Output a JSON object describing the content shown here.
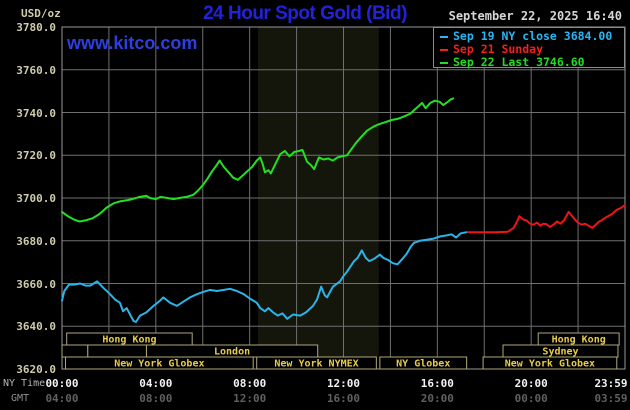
{
  "header": {
    "units_label": "USD/oz",
    "title": "24 Hour Spot Gold (Bid)",
    "datetime": "September 22, 2025 16:40",
    "watermark": "www.kitco.com"
  },
  "legend": {
    "items": [
      {
        "label": "Sep 19 NY close 3684.00",
        "color": "#29b5f2"
      },
      {
        "label": "Sep 21 Sunday",
        "color": "#f02020"
      },
      {
        "label": "Sep 22 Last 3746.60",
        "color": "#21dd21"
      }
    ]
  },
  "axes": {
    "y": {
      "min": 3620,
      "max": 3780,
      "step": 20,
      "labels": [
        "3780.0",
        "3760.0",
        "3740.0",
        "3720.0",
        "3700.0",
        "3680.0",
        "3660.0",
        "3640.0",
        "3620.0"
      ]
    },
    "x": {
      "ny_label": "NY Time",
      "gmt_label": "GMT",
      "ticks": [
        {
          "h": 0,
          "ny": "00:00",
          "gmt": "04:00"
        },
        {
          "h": 4,
          "ny": "04:00",
          "gmt": "08:00"
        },
        {
          "h": 8,
          "ny": "08:00",
          "gmt": "12:00"
        },
        {
          "h": 12,
          "ny": "12:00",
          "gmt": "16:00"
        },
        {
          "h": 16,
          "ny": "16:00",
          "gmt": "20:00"
        },
        {
          "h": 20,
          "ny": "20:00",
          "gmt": "00:00"
        },
        {
          "h": 23.983,
          "ny": "23:59",
          "gmt": "03:59"
        }
      ],
      "gridline_step_hours": 2
    }
  },
  "chart_data": {
    "type": "line",
    "title": "24 Hour Spot Gold (Bid)",
    "x_unit": "hours_ny_time",
    "xlim": [
      0,
      24
    ],
    "ylim": [
      3620,
      3780
    ],
    "grid": true,
    "nymex_band_hours": [
      8.35,
      13.5
    ],
    "band_color": "#15160b",
    "sessions": [
      {
        "row": 0,
        "start": 0.2,
        "end": 5.55,
        "label": "Hong Kong"
      },
      {
        "row": 0,
        "start": 20.3,
        "end": 23.75,
        "label": "Hong Kong"
      },
      {
        "row": 1,
        "start": 0.0,
        "end": 1.1,
        "label": ""
      },
      {
        "row": 1,
        "start": 1.1,
        "end": 3.6,
        "label": ""
      },
      {
        "row": 1,
        "start": 3.6,
        "end": 10.9,
        "label": "London"
      },
      {
        "row": 1,
        "start": 18.8,
        "end": 23.7,
        "label": "Sydney"
      },
      {
        "row": 2,
        "start": 0.15,
        "end": 8.15,
        "label": "New York Globex"
      },
      {
        "row": 2,
        "start": 8.3,
        "end": 13.4,
        "label": "New York NYMEX"
      },
      {
        "row": 2,
        "start": 13.55,
        "end": 17.25,
        "label": "NY Globex"
      },
      {
        "row": 2,
        "start": 17.95,
        "end": 23.65,
        "label": "New York Globex"
      }
    ],
    "series": [
      {
        "name": "Sep 22 (today)",
        "color": "#22e022",
        "points": [
          [
            0,
            3693.5
          ],
          [
            0.25,
            3691.5
          ],
          [
            0.5,
            3690
          ],
          [
            0.75,
            3689
          ],
          [
            1,
            3689.5
          ],
          [
            1.3,
            3690.5
          ],
          [
            1.6,
            3692.5
          ],
          [
            1.9,
            3695.5
          ],
          [
            2.2,
            3697.5
          ],
          [
            2.5,
            3698.5
          ],
          [
            2.8,
            3699
          ],
          [
            3,
            3699.5
          ],
          [
            3.3,
            3700.5
          ],
          [
            3.6,
            3701
          ],
          [
            3.75,
            3700
          ],
          [
            4,
            3699.5
          ],
          [
            4.2,
            3700.5
          ],
          [
            4.5,
            3700
          ],
          [
            4.75,
            3699.5
          ],
          [
            5,
            3700
          ],
          [
            5.3,
            3700.5
          ],
          [
            5.6,
            3701.5
          ],
          [
            5.8,
            3703.5
          ],
          [
            6,
            3706
          ],
          [
            6.2,
            3709
          ],
          [
            6.4,
            3712.5
          ],
          [
            6.6,
            3715.5
          ],
          [
            6.72,
            3717.5
          ],
          [
            6.9,
            3714.5
          ],
          [
            7.1,
            3712
          ],
          [
            7.3,
            3709.5
          ],
          [
            7.5,
            3708.5
          ],
          [
            7.7,
            3710.5
          ],
          [
            7.9,
            3712.5
          ],
          [
            8.1,
            3714.5
          ],
          [
            8.3,
            3717.5
          ],
          [
            8.45,
            3719
          ],
          [
            8.55,
            3716
          ],
          [
            8.65,
            3712
          ],
          [
            8.8,
            3713
          ],
          [
            8.9,
            3711.5
          ],
          [
            9.1,
            3716
          ],
          [
            9.3,
            3720.5
          ],
          [
            9.5,
            3722
          ],
          [
            9.7,
            3719.5
          ],
          [
            9.9,
            3721.5
          ],
          [
            10.1,
            3722
          ],
          [
            10.25,
            3722.5
          ],
          [
            10.45,
            3717
          ],
          [
            10.6,
            3715.5
          ],
          [
            10.75,
            3713.5
          ],
          [
            10.95,
            3719
          ],
          [
            11.15,
            3718
          ],
          [
            11.35,
            3718.5
          ],
          [
            11.55,
            3717.5
          ],
          [
            11.75,
            3719
          ],
          [
            11.95,
            3719.5
          ],
          [
            12.15,
            3720
          ],
          [
            12.35,
            3723
          ],
          [
            12.55,
            3726
          ],
          [
            12.75,
            3728.5
          ],
          [
            13,
            3731.5
          ],
          [
            13.3,
            3733.5
          ],
          [
            13.5,
            3734.5
          ],
          [
            13.8,
            3735.5
          ],
          [
            14.05,
            3736.5
          ],
          [
            14.3,
            3737
          ],
          [
            14.55,
            3738
          ],
          [
            14.85,
            3739.5
          ],
          [
            15,
            3741
          ],
          [
            15.2,
            3743
          ],
          [
            15.35,
            3744.5
          ],
          [
            15.5,
            3742
          ],
          [
            15.7,
            3744.5
          ],
          [
            15.9,
            3745.5
          ],
          [
            16.1,
            3745
          ],
          [
            16.25,
            3743.5
          ],
          [
            16.45,
            3745
          ],
          [
            16.55,
            3746
          ],
          [
            16.67,
            3746.6
          ]
        ]
      },
      {
        "name": "Sep 19 NY close",
        "color": "#2ab4ea",
        "points": [
          [
            0,
            3652
          ],
          [
            0.1,
            3656.5
          ],
          [
            0.3,
            3659.5
          ],
          [
            0.5,
            3659.5
          ],
          [
            0.77,
            3660
          ],
          [
            1,
            3659
          ],
          [
            1.2,
            3659
          ],
          [
            1.5,
            3661
          ],
          [
            1.76,
            3658
          ],
          [
            2.05,
            3655
          ],
          [
            2.26,
            3652.5
          ],
          [
            2.47,
            3651
          ],
          [
            2.6,
            3647
          ],
          [
            2.76,
            3648.5
          ],
          [
            2.9,
            3645.5
          ],
          [
            3.05,
            3642.5
          ],
          [
            3.15,
            3642
          ],
          [
            3.33,
            3645
          ],
          [
            3.6,
            3646.5
          ],
          [
            3.9,
            3649.5
          ],
          [
            4.18,
            3652
          ],
          [
            4.32,
            3653.5
          ],
          [
            4.6,
            3651
          ],
          [
            4.9,
            3649.5
          ],
          [
            5.17,
            3651.5
          ],
          [
            5.46,
            3653.5
          ],
          [
            5.75,
            3655
          ],
          [
            6,
            3656
          ],
          [
            6.3,
            3657
          ],
          [
            6.6,
            3656.5
          ],
          [
            6.9,
            3657
          ],
          [
            7.16,
            3657.5
          ],
          [
            7.45,
            3656.5
          ],
          [
            7.75,
            3655
          ],
          [
            8,
            3653
          ],
          [
            8.3,
            3651
          ],
          [
            8.45,
            3648.5
          ],
          [
            8.65,
            3647
          ],
          [
            8.8,
            3648.5
          ],
          [
            9,
            3646.5
          ],
          [
            9.2,
            3645
          ],
          [
            9.4,
            3646
          ],
          [
            9.6,
            3643.5
          ],
          [
            9.85,
            3645.5
          ],
          [
            10.15,
            3645
          ],
          [
            10.4,
            3646.5
          ],
          [
            10.7,
            3649.5
          ],
          [
            10.87,
            3652.5
          ],
          [
            11.05,
            3658.5
          ],
          [
            11.2,
            3654.5
          ],
          [
            11.3,
            3653.5
          ],
          [
            11.55,
            3658.5
          ],
          [
            11.85,
            3661
          ],
          [
            12,
            3663.5
          ],
          [
            12.15,
            3665.5
          ],
          [
            12.3,
            3668
          ],
          [
            12.45,
            3670.5
          ],
          [
            12.6,
            3672
          ],
          [
            12.78,
            3675.5
          ],
          [
            12.95,
            3672
          ],
          [
            13.1,
            3670.5
          ],
          [
            13.3,
            3671.5
          ],
          [
            13.55,
            3673.5
          ],
          [
            13.7,
            3672
          ],
          [
            13.9,
            3671
          ],
          [
            14.1,
            3669.5
          ],
          [
            14.3,
            3669
          ],
          [
            14.55,
            3672
          ],
          [
            14.7,
            3674
          ],
          [
            14.85,
            3677
          ],
          [
            15,
            3679
          ],
          [
            15.25,
            3680
          ],
          [
            15.55,
            3680.5
          ],
          [
            15.85,
            3681
          ],
          [
            16.1,
            3682
          ],
          [
            16.4,
            3682.5
          ],
          [
            16.6,
            3683
          ],
          [
            16.8,
            3681.5
          ],
          [
            17,
            3683.5
          ],
          [
            17.25,
            3684
          ]
        ]
      },
      {
        "name": "Sep 21 Sunday",
        "color": "#ee1515",
        "points": [
          [
            17.3,
            3684
          ],
          [
            18.5,
            3684
          ],
          [
            19,
            3684.2
          ],
          [
            19.25,
            3686
          ],
          [
            19.4,
            3689
          ],
          [
            19.5,
            3691.5
          ],
          [
            19.65,
            3690
          ],
          [
            19.8,
            3689.5
          ],
          [
            19.95,
            3688
          ],
          [
            20.1,
            3687.5
          ],
          [
            20.25,
            3688.5
          ],
          [
            20.4,
            3687
          ],
          [
            20.5,
            3688
          ],
          [
            20.65,
            3687.8
          ],
          [
            20.8,
            3686.5
          ],
          [
            20.95,
            3687.5
          ],
          [
            21.1,
            3689
          ],
          [
            21.25,
            3688
          ],
          [
            21.4,
            3689.5
          ],
          [
            21.55,
            3692.5
          ],
          [
            21.6,
            3693.5
          ],
          [
            21.75,
            3691.5
          ],
          [
            21.9,
            3689.5
          ],
          [
            22,
            3688.5
          ],
          [
            22.15,
            3687.5
          ],
          [
            22.3,
            3688
          ],
          [
            22.45,
            3687
          ],
          [
            22.6,
            3686
          ],
          [
            22.75,
            3687.5
          ],
          [
            22.9,
            3689
          ],
          [
            23,
            3689.5
          ],
          [
            23.2,
            3691
          ],
          [
            23.45,
            3692.5
          ],
          [
            23.65,
            3694.5
          ],
          [
            23.85,
            3695.5
          ],
          [
            23.98,
            3696.5
          ]
        ]
      }
    ],
    "session_box_border": "#b0a878",
    "session_label_color": "#e8cc4e",
    "gridline_color": "#6f6f6f",
    "border_color": "#999999"
  }
}
